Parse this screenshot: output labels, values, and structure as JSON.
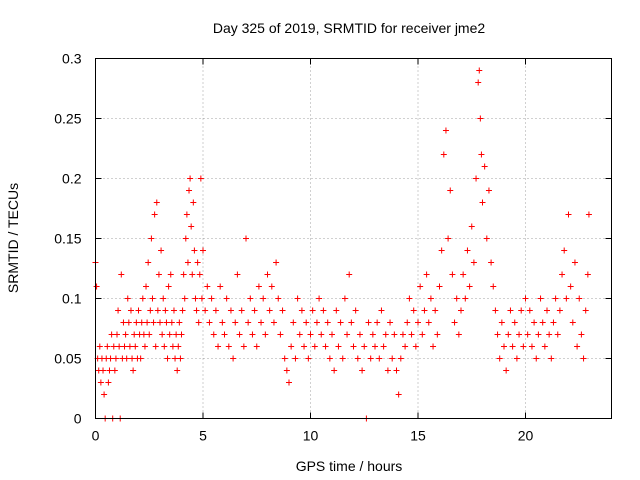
{
  "chart_data": {
    "type": "scatter",
    "title": "Day 325 of 2019, SRMTID for receiver jme2",
    "xlabel": "GPS time / hours",
    "ylabel": "SRMTID / TECUs",
    "xlim": [
      0,
      24
    ],
    "ylim": [
      0,
      0.3
    ],
    "xticks": [
      {
        "value": 0,
        "label": "0"
      },
      {
        "value": 5,
        "label": "5"
      },
      {
        "value": 10,
        "label": "10"
      },
      {
        "value": 15,
        "label": "15"
      },
      {
        "value": 20,
        "label": "20"
      }
    ],
    "yticks": [
      {
        "value": 0,
        "label": "0"
      },
      {
        "value": 0.05,
        "label": "0.05"
      },
      {
        "value": 0.1,
        "label": "0.1"
      },
      {
        "value": 0.15,
        "label": "0.15"
      },
      {
        "value": 0.2,
        "label": "0.2"
      },
      {
        "value": 0.25,
        "label": "0.25"
      },
      {
        "value": 0.3,
        "label": "0.3"
      }
    ],
    "grid": true,
    "marker": "plus",
    "color": "#ff0000",
    "series": [
      {
        "name": "SRMTID",
        "points": [
          [
            0.0,
            0.13
          ],
          [
            0.05,
            0.11
          ],
          [
            0.1,
            0.05
          ],
          [
            0.15,
            0.04
          ],
          [
            0.2,
            0.06
          ],
          [
            0.25,
            0.03
          ],
          [
            0.3,
            0.05
          ],
          [
            0.35,
            0.04
          ],
          [
            0.4,
            0.02
          ],
          [
            0.45,
            0.0
          ],
          [
            0.5,
            0.05
          ],
          [
            0.55,
            0.06
          ],
          [
            0.6,
            0.03
          ],
          [
            0.65,
            0.04
          ],
          [
            0.7,
            0.05
          ],
          [
            0.75,
            0.07
          ],
          [
            0.8,
            0.0
          ],
          [
            0.85,
            0.06
          ],
          [
            0.9,
            0.04
          ],
          [
            0.95,
            0.05
          ],
          [
            1.0,
            0.07
          ],
          [
            1.05,
            0.09
          ],
          [
            1.1,
            0.06
          ],
          [
            1.15,
            0.0
          ],
          [
            1.2,
            0.12
          ],
          [
            1.25,
            0.05
          ],
          [
            1.3,
            0.08
          ],
          [
            1.35,
            0.06
          ],
          [
            1.4,
            0.07
          ],
          [
            1.45,
            0.05
          ],
          [
            1.5,
            0.1
          ],
          [
            1.55,
            0.08
          ],
          [
            1.6,
            0.06
          ],
          [
            1.65,
            0.09
          ],
          [
            1.7,
            0.05
          ],
          [
            1.75,
            0.04
          ],
          [
            1.8,
            0.07
          ],
          [
            1.85,
            0.06
          ],
          [
            1.9,
            0.08
          ],
          [
            1.95,
            0.05
          ],
          [
            2.0,
            0.09
          ],
          [
            2.05,
            0.07
          ],
          [
            2.1,
            0.05
          ],
          [
            2.15,
            0.08
          ],
          [
            2.2,
            0.1
          ],
          [
            2.25,
            0.07
          ],
          [
            2.3,
            0.06
          ],
          [
            2.35,
            0.11
          ],
          [
            2.4,
            0.08
          ],
          [
            2.45,
            0.13
          ],
          [
            2.5,
            0.07
          ],
          [
            2.55,
            0.09
          ],
          [
            2.6,
            0.15
          ],
          [
            2.65,
            0.1
          ],
          [
            2.7,
            0.08
          ],
          [
            2.75,
            0.17
          ],
          [
            2.8,
            0.06
          ],
          [
            2.85,
            0.18
          ],
          [
            2.9,
            0.09
          ],
          [
            2.95,
            0.12
          ],
          [
            3.0,
            0.08
          ],
          [
            3.05,
            0.14
          ],
          [
            3.1,
            0.07
          ],
          [
            3.15,
            0.1
          ],
          [
            3.2,
            0.06
          ],
          [
            3.25,
            0.09
          ],
          [
            3.3,
            0.08
          ],
          [
            3.35,
            0.05
          ],
          [
            3.4,
            0.11
          ],
          [
            3.45,
            0.07
          ],
          [
            3.5,
            0.12
          ],
          [
            3.55,
            0.08
          ],
          [
            3.6,
            0.06
          ],
          [
            3.65,
            0.09
          ],
          [
            3.7,
            0.05
          ],
          [
            3.75,
            0.07
          ],
          [
            3.8,
            0.04
          ],
          [
            3.85,
            0.06
          ],
          [
            3.9,
            0.08
          ],
          [
            3.95,
            0.05
          ],
          [
            4.0,
            0.07
          ],
          [
            4.05,
            0.09
          ],
          [
            4.1,
            0.12
          ],
          [
            4.15,
            0.1
          ],
          [
            4.2,
            0.15
          ],
          [
            4.25,
            0.17
          ],
          [
            4.3,
            0.13
          ],
          [
            4.35,
            0.19
          ],
          [
            4.4,
            0.2
          ],
          [
            4.45,
            0.16
          ],
          [
            4.5,
            0.12
          ],
          [
            4.55,
            0.18
          ],
          [
            4.6,
            0.14
          ],
          [
            4.65,
            0.1
          ],
          [
            4.7,
            0.09
          ],
          [
            4.75,
            0.13
          ],
          [
            4.8,
            0.08
          ],
          [
            4.85,
            0.12
          ],
          [
            4.9,
            0.2
          ],
          [
            4.95,
            0.1
          ],
          [
            5.0,
            0.14
          ],
          [
            5.1,
            0.09
          ],
          [
            5.2,
            0.11
          ],
          [
            5.3,
            0.08
          ],
          [
            5.4,
            0.1
          ],
          [
            5.5,
            0.07
          ],
          [
            5.6,
            0.09
          ],
          [
            5.7,
            0.06
          ],
          [
            5.8,
            0.11
          ],
          [
            5.9,
            0.08
          ],
          [
            6.0,
            0.07
          ],
          [
            6.1,
            0.1
          ],
          [
            6.2,
            0.06
          ],
          [
            6.3,
            0.09
          ],
          [
            6.4,
            0.05
          ],
          [
            6.5,
            0.08
          ],
          [
            6.6,
            0.12
          ],
          [
            6.7,
            0.07
          ],
          [
            6.8,
            0.09
          ],
          [
            6.9,
            0.06
          ],
          [
            7.0,
            0.15
          ],
          [
            7.1,
            0.08
          ],
          [
            7.2,
            0.1
          ],
          [
            7.3,
            0.07
          ],
          [
            7.4,
            0.09
          ],
          [
            7.5,
            0.06
          ],
          [
            7.6,
            0.11
          ],
          [
            7.7,
            0.08
          ],
          [
            7.8,
            0.1
          ],
          [
            7.9,
            0.07
          ],
          [
            8.0,
            0.12
          ],
          [
            8.1,
            0.09
          ],
          [
            8.2,
            0.11
          ],
          [
            8.3,
            0.08
          ],
          [
            8.4,
            0.13
          ],
          [
            8.5,
            0.1
          ],
          [
            8.6,
            0.07
          ],
          [
            8.7,
            0.09
          ],
          [
            8.8,
            0.05
          ],
          [
            8.9,
            0.04
          ],
          [
            9.0,
            0.03
          ],
          [
            9.1,
            0.06
          ],
          [
            9.2,
            0.08
          ],
          [
            9.3,
            0.05
          ],
          [
            9.4,
            0.1
          ],
          [
            9.5,
            0.07
          ],
          [
            9.6,
            0.09
          ],
          [
            9.7,
            0.06
          ],
          [
            9.8,
            0.08
          ],
          [
            9.9,
            0.05
          ],
          [
            10.0,
            0.07
          ],
          [
            10.1,
            0.09
          ],
          [
            10.2,
            0.06
          ],
          [
            10.3,
            0.08
          ],
          [
            10.4,
            0.1
          ],
          [
            10.5,
            0.07
          ],
          [
            10.6,
            0.09
          ],
          [
            10.7,
            0.06
          ],
          [
            10.8,
            0.08
          ],
          [
            10.9,
            0.05
          ],
          [
            11.0,
            0.07
          ],
          [
            11.1,
            0.04
          ],
          [
            11.2,
            0.09
          ],
          [
            11.3,
            0.06
          ],
          [
            11.4,
            0.08
          ],
          [
            11.5,
            0.05
          ],
          [
            11.6,
            0.1
          ],
          [
            11.7,
            0.07
          ],
          [
            11.8,
            0.12
          ],
          [
            11.9,
            0.08
          ],
          [
            12.0,
            0.06
          ],
          [
            12.1,
            0.09
          ],
          [
            12.2,
            0.05
          ],
          [
            12.3,
            0.07
          ],
          [
            12.4,
            0.04
          ],
          [
            12.5,
            0.06
          ],
          [
            12.6,
            0.0
          ],
          [
            12.7,
            0.08
          ],
          [
            12.8,
            0.05
          ],
          [
            12.9,
            0.07
          ],
          [
            13.0,
            0.06
          ],
          [
            13.1,
            0.08
          ],
          [
            13.2,
            0.05
          ],
          [
            13.3,
            0.09
          ],
          [
            13.4,
            0.06
          ],
          [
            13.5,
            0.07
          ],
          [
            13.6,
            0.04
          ],
          [
            13.7,
            0.08
          ],
          [
            13.8,
            0.05
          ],
          [
            13.9,
            0.07
          ],
          [
            14.0,
            0.04
          ],
          [
            14.1,
            0.02
          ],
          [
            14.2,
            0.05
          ],
          [
            14.3,
            0.07
          ],
          [
            14.4,
            0.06
          ],
          [
            14.5,
            0.08
          ],
          [
            14.6,
            0.1
          ],
          [
            14.7,
            0.07
          ],
          [
            14.8,
            0.09
          ],
          [
            14.9,
            0.06
          ],
          [
            15.0,
            0.08
          ],
          [
            15.1,
            0.11
          ],
          [
            15.2,
            0.07
          ],
          [
            15.3,
            0.09
          ],
          [
            15.4,
            0.12
          ],
          [
            15.5,
            0.08
          ],
          [
            15.6,
            0.1
          ],
          [
            15.7,
            0.06
          ],
          [
            15.8,
            0.09
          ],
          [
            15.9,
            0.07
          ],
          [
            16.0,
            0.11
          ],
          [
            16.1,
            0.14
          ],
          [
            16.2,
            0.22
          ],
          [
            16.3,
            0.24
          ],
          [
            16.4,
            0.15
          ],
          [
            16.5,
            0.19
          ],
          [
            16.6,
            0.12
          ],
          [
            16.7,
            0.08
          ],
          [
            16.8,
            0.1
          ],
          [
            16.9,
            0.07
          ],
          [
            17.0,
            0.09
          ],
          [
            17.1,
            0.12
          ],
          [
            17.2,
            0.1
          ],
          [
            17.3,
            0.14
          ],
          [
            17.4,
            0.11
          ],
          [
            17.5,
            0.16
          ],
          [
            17.6,
            0.13
          ],
          [
            17.7,
            0.2
          ],
          [
            17.8,
            0.28
          ],
          [
            17.85,
            0.29
          ],
          [
            17.9,
            0.25
          ],
          [
            17.95,
            0.22
          ],
          [
            18.0,
            0.18
          ],
          [
            18.1,
            0.21
          ],
          [
            18.2,
            0.15
          ],
          [
            18.3,
            0.19
          ],
          [
            18.4,
            0.13
          ],
          [
            18.5,
            0.11
          ],
          [
            18.6,
            0.09
          ],
          [
            18.7,
            0.07
          ],
          [
            18.8,
            0.05
          ],
          [
            18.9,
            0.08
          ],
          [
            19.0,
            0.06
          ],
          [
            19.1,
            0.04
          ],
          [
            19.2,
            0.07
          ],
          [
            19.3,
            0.09
          ],
          [
            19.4,
            0.06
          ],
          [
            19.5,
            0.08
          ],
          [
            19.6,
            0.05
          ],
          [
            19.7,
            0.07
          ],
          [
            19.8,
            0.09
          ],
          [
            19.9,
            0.06
          ],
          [
            20.0,
            0.1
          ],
          [
            20.1,
            0.07
          ],
          [
            20.2,
            0.09
          ],
          [
            20.3,
            0.06
          ],
          [
            20.4,
            0.08
          ],
          [
            20.5,
            0.05
          ],
          [
            20.6,
            0.07
          ],
          [
            20.7,
            0.1
          ],
          [
            20.8,
            0.08
          ],
          [
            20.9,
            0.06
          ],
          [
            21.0,
            0.09
          ],
          [
            21.1,
            0.07
          ],
          [
            21.2,
            0.05
          ],
          [
            21.3,
            0.08
          ],
          [
            21.4,
            0.1
          ],
          [
            21.5,
            0.07
          ],
          [
            21.6,
            0.09
          ],
          [
            21.7,
            0.12
          ],
          [
            21.8,
            0.14
          ],
          [
            21.9,
            0.1
          ],
          [
            22.0,
            0.17
          ],
          [
            22.1,
            0.11
          ],
          [
            22.2,
            0.08
          ],
          [
            22.3,
            0.13
          ],
          [
            22.4,
            0.06
          ],
          [
            22.5,
            0.1
          ],
          [
            22.6,
            0.07
          ],
          [
            22.7,
            0.05
          ],
          [
            22.8,
            0.09
          ],
          [
            22.9,
            0.12
          ],
          [
            22.95,
            0.17
          ]
        ]
      }
    ]
  }
}
